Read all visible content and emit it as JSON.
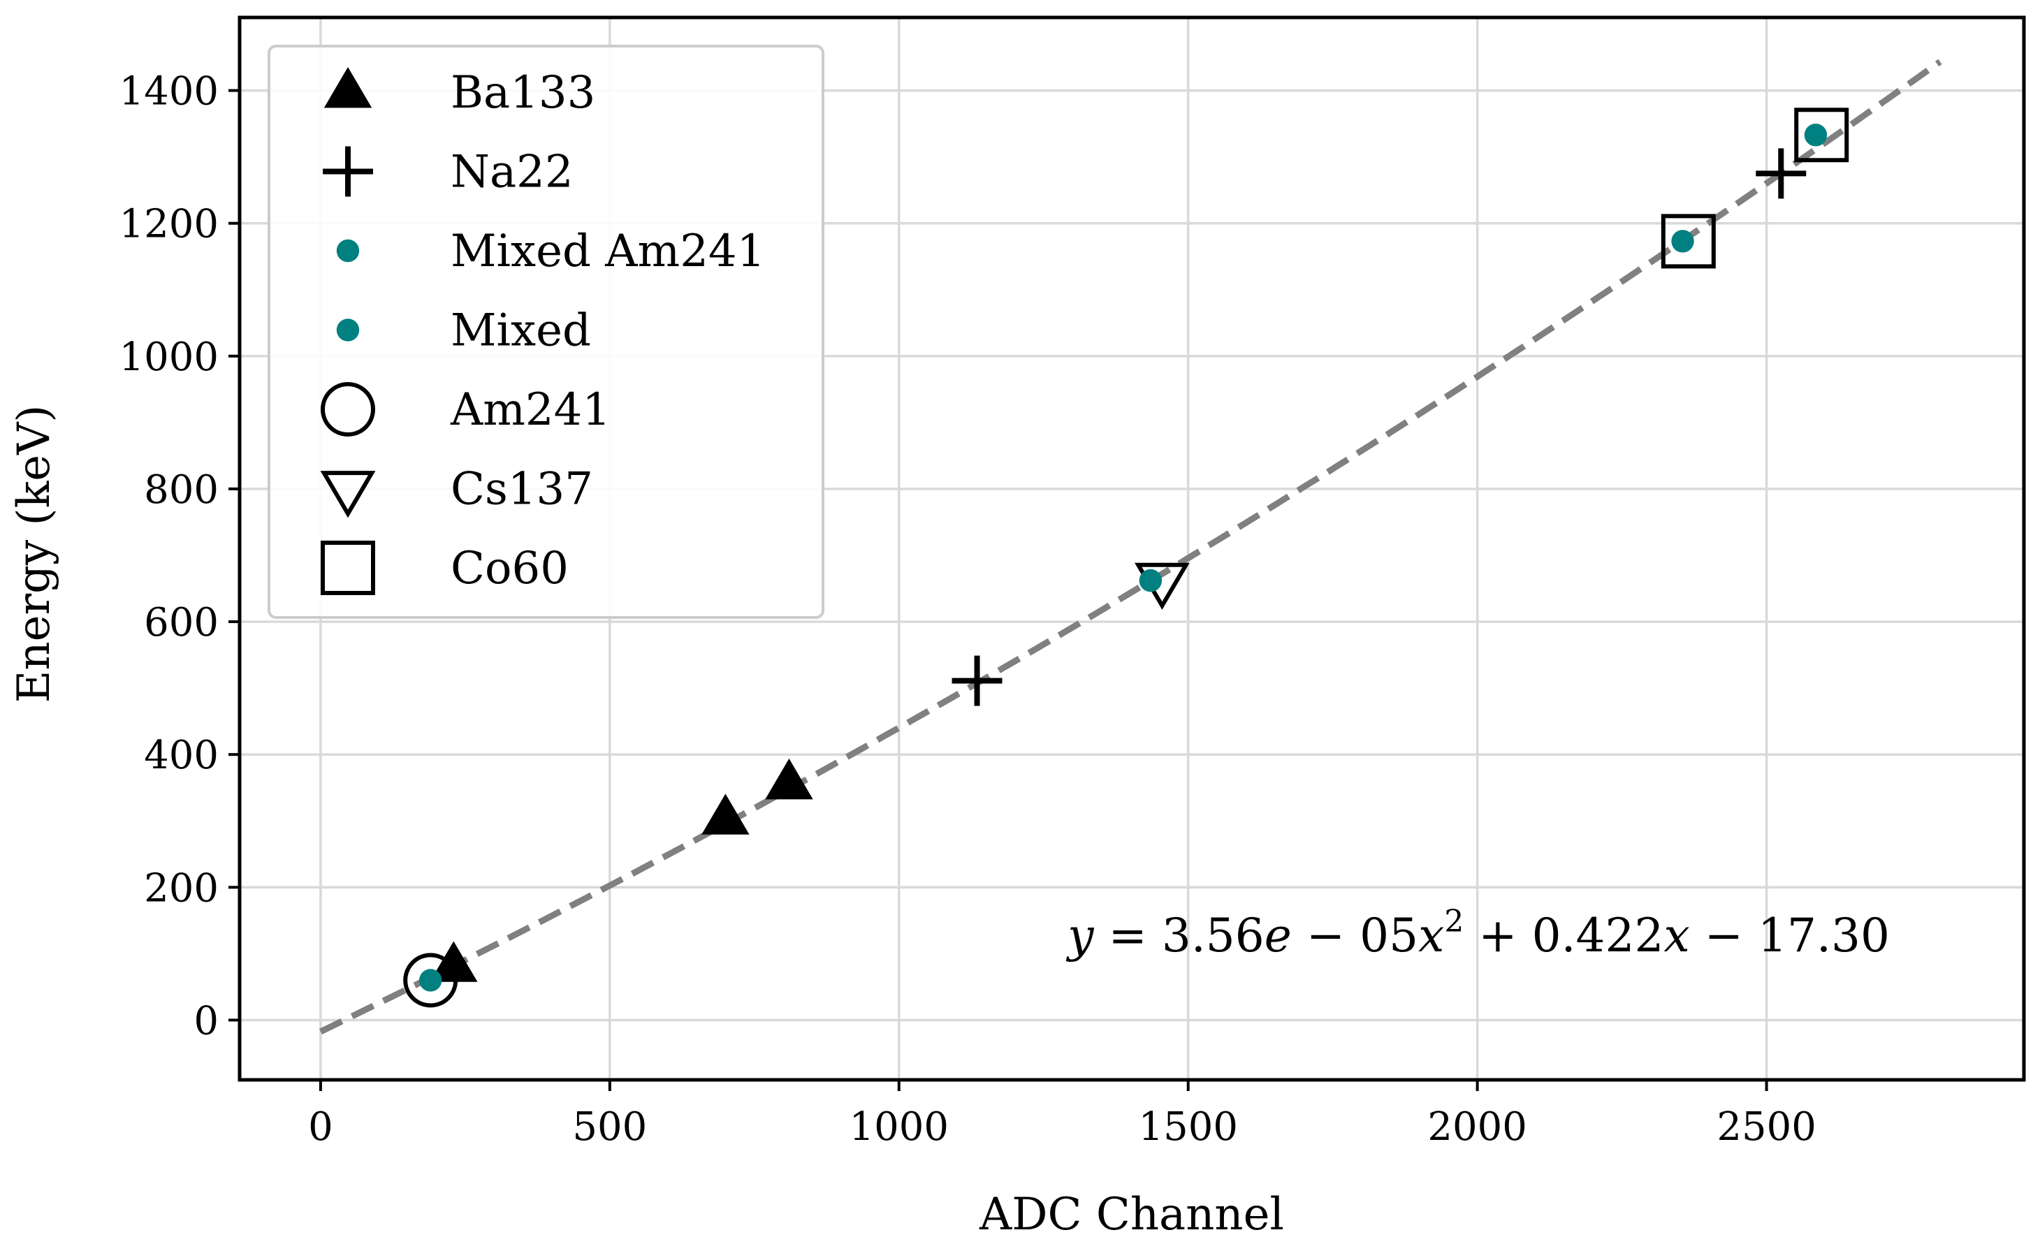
{
  "chart_data": {
    "type": "scatter",
    "title": "",
    "xlabel": "ADC Channel",
    "ylabel": "Energy (keV)",
    "xlim": [
      -140,
      2945
    ],
    "ylim": [
      -90,
      1510
    ],
    "xticks": [
      0,
      500,
      1000,
      1500,
      2000,
      2500
    ],
    "yticks": [
      0,
      200,
      400,
      600,
      800,
      1000,
      1200,
      1400
    ],
    "grid": true,
    "legend_position": "upper-left",
    "colors": {
      "mixed": "#008080",
      "fit": "#808080",
      "marker": "#000000"
    },
    "series": [
      {
        "name": "Ba133",
        "marker": "triangle-up",
        "points": [
          [
            230,
            81
          ],
          [
            700,
            303
          ],
          [
            810,
            356
          ]
        ]
      },
      {
        "name": "Na22",
        "marker": "plus",
        "points": [
          [
            1135,
            511
          ],
          [
            2525,
            1275
          ]
        ]
      },
      {
        "name": "Mixed Am241",
        "marker": "dot",
        "points": [
          [
            190,
            60
          ]
        ]
      },
      {
        "name": "Mixed",
        "marker": "dot",
        "points": [
          [
            1435,
            662
          ],
          [
            2355,
            1173
          ],
          [
            2585,
            1333
          ]
        ]
      },
      {
        "name": "Am241",
        "marker": "circle",
        "points": [
          [
            190,
            60
          ]
        ]
      },
      {
        "name": "Cs137",
        "marker": "triangle-down",
        "points": [
          [
            1455,
            662
          ]
        ]
      },
      {
        "name": "Co60",
        "marker": "square",
        "points": [
          [
            2365,
            1173
          ],
          [
            2595,
            1333
          ]
        ]
      }
    ],
    "fit": {
      "coefficients": {
        "a": 3.56e-05,
        "b": 0.422,
        "c": -17.3
      },
      "x_range": [
        0,
        2800
      ],
      "style": "dashed"
    },
    "annotation": {
      "parts": [
        "y",
        " = 3.56",
        "e",
        " − 05",
        "x",
        "2",
        " + 0.422",
        "x",
        " − 17.30"
      ]
    }
  }
}
